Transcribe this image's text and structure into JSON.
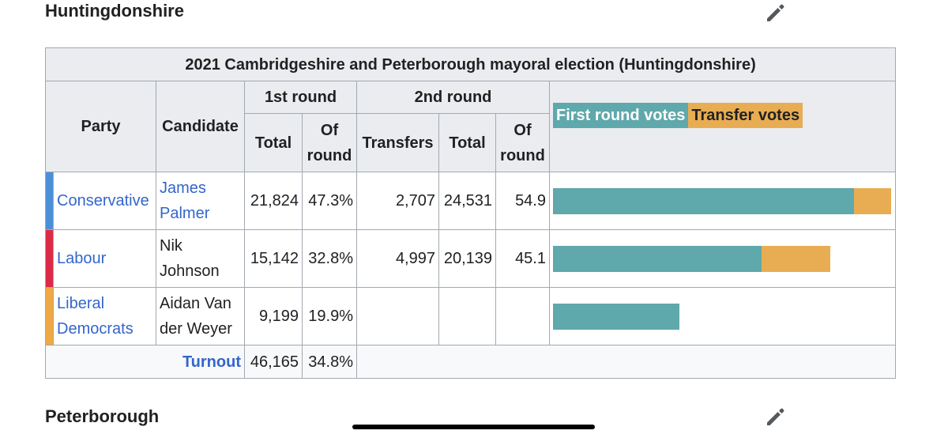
{
  "sections": [
    {
      "heading": "Huntingdonshire"
    },
    {
      "heading": "Peterborough"
    }
  ],
  "table": {
    "caption": "2021 Cambridgeshire and Peterborough mayoral election (Huntingdonshire)",
    "headers": {
      "party": "Party",
      "candidate": "Candidate",
      "round1": "1st round",
      "round2": "2nd round",
      "total": "Total",
      "of_round": "Of round",
      "transfers": "Transfers",
      "total2": "Total",
      "of_round2": "Of round"
    },
    "legend": {
      "first": "First round votes",
      "transfer": "Transfer votes",
      "first_color": "#5fa8ab",
      "transfer_color": "#e8ad52"
    },
    "rows": [
      {
        "party": "Conservative",
        "party_color": "#4a90d9",
        "candidate": "James Palmer",
        "candidate_link": true,
        "r1_total": "21,824",
        "r1_pct": "47.3%",
        "transfers": "2,707",
        "r2_total": "24,531",
        "r2_pct": "54.9",
        "bar_first": 21824,
        "bar_transfer": 2707
      },
      {
        "party": "Labour",
        "party_color": "#dc2a46",
        "candidate": "Nik Johnson",
        "candidate_link": false,
        "r1_total": "15,142",
        "r1_pct": "32.8%",
        "transfers": "4,997",
        "r2_total": "20,139",
        "r2_pct": "45.1",
        "bar_first": 15142,
        "bar_transfer": 4997
      },
      {
        "party": "Liberal Democrats",
        "party_color": "#eea944",
        "candidate": "Aidan Van der Weyer",
        "candidate_link": false,
        "r1_total": "9,199",
        "r1_pct": "19.9%",
        "transfers": "",
        "r2_total": "",
        "r2_pct": "",
        "bar_first": 9199,
        "bar_transfer": 0
      }
    ],
    "turnout": {
      "label": "Turnout",
      "total": "46,165",
      "pct": "34.8%"
    }
  }
}
